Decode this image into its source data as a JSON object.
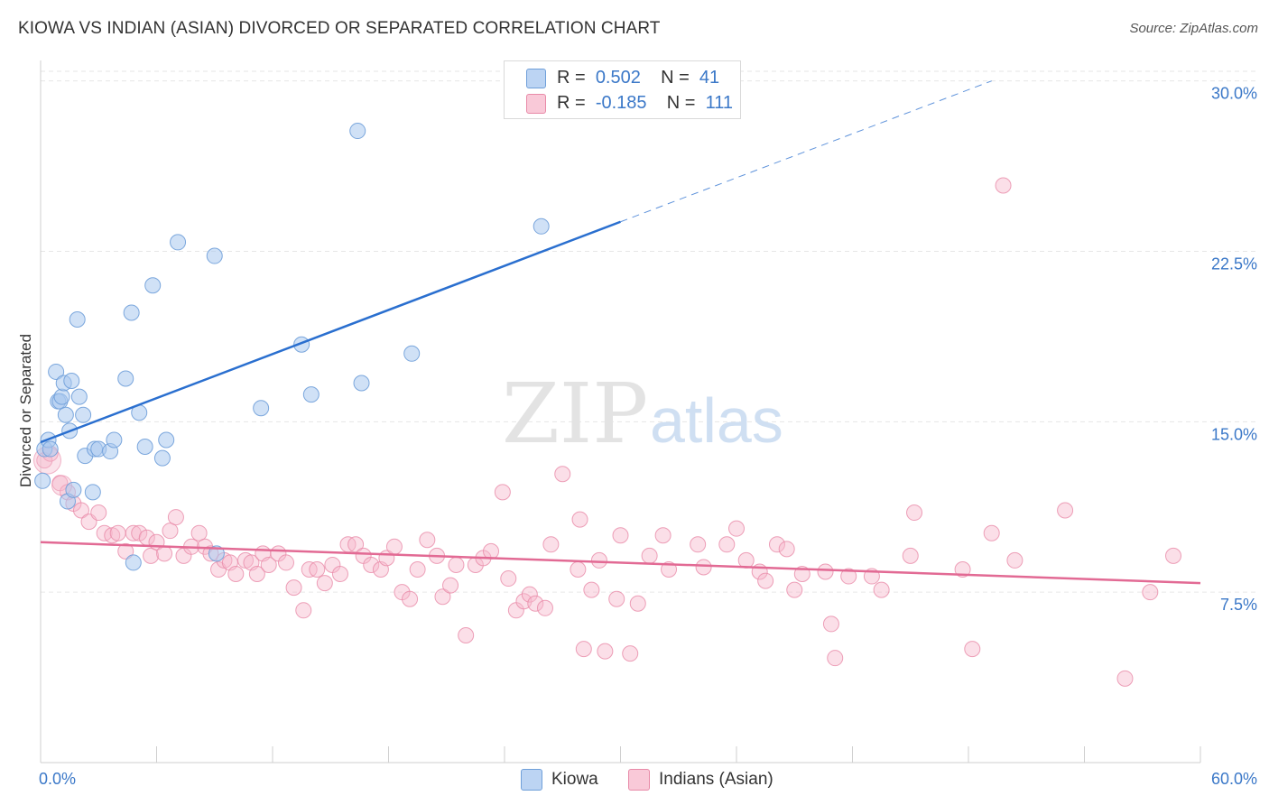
{
  "title": "KIOWA VS INDIAN (ASIAN) DIVORCED OR SEPARATED CORRELATION CHART",
  "source": "Source: ZipAtlas.com",
  "watermark": {
    "zip": "ZIP",
    "atlas": "atlas"
  },
  "legend": {
    "r_label": "R =",
    "n_label": "N =",
    "kiowa": {
      "r": "0.502",
      "n": "41"
    },
    "indian": {
      "r": "-0.185",
      "n": "111"
    }
  },
  "bottom_legend": {
    "kiowa": "Kiowa",
    "indian": "Indians (Asian)"
  },
  "colors": {
    "kiowa_fill": "#aac8ef",
    "kiowa_stroke": "#6f9fd9",
    "kiowa_line": "#2a6fcf",
    "indian_fill": "#f6b9cc",
    "indian_stroke": "#e88aa8",
    "indian_line": "#e26a94",
    "axis_text": "#3b78c8",
    "grid": "#e6e6e6"
  },
  "chart_data": {
    "type": "scatter",
    "xlabel": "",
    "ylabel": "Divorced or Separated",
    "xlim": [
      0,
      60
    ],
    "ylim": [
      0,
      30.9
    ],
    "x_tick_labels": [
      "0.0%",
      "60.0%"
    ],
    "y_ticks": [
      7.5,
      15.0,
      22.5,
      30.0
    ],
    "y_tick_labels": [
      "7.5%",
      "15.0%",
      "22.5%",
      "30.0%"
    ],
    "grid": "horizontal dashed",
    "series": [
      {
        "name": "Kiowa",
        "points": [
          [
            0.1,
            12.4
          ],
          [
            0.2,
            13.8
          ],
          [
            0.4,
            14.2
          ],
          [
            0.5,
            13.8
          ],
          [
            0.8,
            17.2
          ],
          [
            0.9,
            15.9
          ],
          [
            1.0,
            15.9
          ],
          [
            1.1,
            16.1
          ],
          [
            1.2,
            16.7
          ],
          [
            1.3,
            15.3
          ],
          [
            1.4,
            11.5
          ],
          [
            1.5,
            14.6
          ],
          [
            1.6,
            16.8
          ],
          [
            1.7,
            12.0
          ],
          [
            1.9,
            19.5
          ],
          [
            2.0,
            16.1
          ],
          [
            2.2,
            15.3
          ],
          [
            2.3,
            13.5
          ],
          [
            2.7,
            11.9
          ],
          [
            2.8,
            13.8
          ],
          [
            3.0,
            13.8
          ],
          [
            3.6,
            13.7
          ],
          [
            3.8,
            14.2
          ],
          [
            4.4,
            16.9
          ],
          [
            4.7,
            19.8
          ],
          [
            4.8,
            8.8
          ],
          [
            5.1,
            15.4
          ],
          [
            5.4,
            13.9
          ],
          [
            5.8,
            21.0
          ],
          [
            6.3,
            13.4
          ],
          [
            6.5,
            14.2
          ],
          [
            7.1,
            22.9
          ],
          [
            9.0,
            22.3
          ],
          [
            9.1,
            9.2
          ],
          [
            11.4,
            15.6
          ],
          [
            13.5,
            18.4
          ],
          [
            14.0,
            16.2
          ],
          [
            16.4,
            27.8
          ],
          [
            16.6,
            16.7
          ],
          [
            19.2,
            18.0
          ],
          [
            25.9,
            23.6
          ]
        ],
        "trend": {
          "x": [
            0,
            30
          ],
          "y": [
            14.1,
            23.8
          ],
          "dashed_to": [
            49.2,
            30.0
          ]
        }
      },
      {
        "name": "Indians (Asian)",
        "points": [
          [
            0.2,
            13.3
          ],
          [
            0.5,
            13.6
          ],
          [
            1.0,
            12.3
          ],
          [
            1.4,
            11.9
          ],
          [
            1.7,
            11.4
          ],
          [
            2.1,
            11.1
          ],
          [
            2.5,
            10.6
          ],
          [
            3.0,
            11.0
          ],
          [
            3.3,
            10.1
          ],
          [
            3.7,
            10.0
          ],
          [
            4.0,
            10.1
          ],
          [
            4.4,
            9.3
          ],
          [
            4.8,
            10.1
          ],
          [
            5.1,
            10.1
          ],
          [
            5.5,
            9.9
          ],
          [
            5.7,
            9.1
          ],
          [
            6.0,
            9.7
          ],
          [
            6.4,
            9.2
          ],
          [
            6.7,
            10.2
          ],
          [
            7.0,
            10.8
          ],
          [
            7.4,
            9.1
          ],
          [
            7.8,
            9.5
          ],
          [
            8.2,
            10.1
          ],
          [
            8.5,
            9.5
          ],
          [
            8.8,
            9.2
          ],
          [
            9.2,
            8.5
          ],
          [
            9.5,
            8.9
          ],
          [
            9.8,
            8.8
          ],
          [
            10.1,
            8.3
          ],
          [
            10.6,
            8.9
          ],
          [
            10.9,
            8.8
          ],
          [
            11.2,
            8.3
          ],
          [
            11.5,
            9.2
          ],
          [
            11.8,
            8.7
          ],
          [
            12.3,
            9.2
          ],
          [
            12.7,
            8.8
          ],
          [
            13.1,
            7.7
          ],
          [
            13.6,
            6.7
          ],
          [
            13.9,
            8.5
          ],
          [
            14.3,
            8.5
          ],
          [
            14.7,
            7.9
          ],
          [
            15.1,
            8.7
          ],
          [
            15.5,
            8.3
          ],
          [
            15.9,
            9.6
          ],
          [
            16.3,
            9.6
          ],
          [
            16.7,
            9.1
          ],
          [
            17.1,
            8.7
          ],
          [
            17.6,
            8.5
          ],
          [
            17.9,
            9.0
          ],
          [
            18.3,
            9.5
          ],
          [
            18.7,
            7.5
          ],
          [
            19.1,
            7.2
          ],
          [
            19.5,
            8.5
          ],
          [
            20.0,
            9.8
          ],
          [
            20.5,
            9.1
          ],
          [
            20.8,
            7.3
          ],
          [
            21.2,
            7.8
          ],
          [
            21.5,
            8.7
          ],
          [
            22.0,
            5.6
          ],
          [
            22.5,
            8.7
          ],
          [
            22.9,
            9.0
          ],
          [
            23.3,
            9.3
          ],
          [
            23.9,
            11.9
          ],
          [
            24.2,
            8.1
          ],
          [
            24.6,
            6.7
          ],
          [
            25.0,
            7.1
          ],
          [
            25.3,
            7.4
          ],
          [
            25.6,
            7.0
          ],
          [
            26.1,
            6.8
          ],
          [
            26.4,
            9.6
          ],
          [
            27.0,
            12.7
          ],
          [
            27.8,
            8.5
          ],
          [
            27.9,
            10.7
          ],
          [
            28.1,
            5.0
          ],
          [
            28.5,
            7.6
          ],
          [
            28.9,
            8.9
          ],
          [
            29.2,
            4.9
          ],
          [
            29.8,
            7.2
          ],
          [
            30.5,
            4.8
          ],
          [
            30.9,
            7.0
          ],
          [
            30.0,
            10.0
          ],
          [
            31.5,
            9.1
          ],
          [
            32.2,
            10.0
          ],
          [
            32.5,
            8.5
          ],
          [
            34.0,
            9.6
          ],
          [
            34.3,
            8.6
          ],
          [
            35.5,
            9.6
          ],
          [
            36.0,
            10.3
          ],
          [
            36.5,
            8.9
          ],
          [
            37.2,
            8.4
          ],
          [
            37.5,
            8.0
          ],
          [
            38.1,
            9.6
          ],
          [
            38.6,
            9.4
          ],
          [
            39.0,
            7.6
          ],
          [
            39.4,
            8.3
          ],
          [
            40.6,
            8.4
          ],
          [
            40.9,
            6.1
          ],
          [
            41.1,
            4.6
          ],
          [
            41.8,
            8.2
          ],
          [
            43.0,
            8.2
          ],
          [
            43.5,
            7.6
          ],
          [
            45.2,
            11.0
          ],
          [
            45.0,
            9.1
          ],
          [
            47.7,
            8.5
          ],
          [
            48.2,
            5.0
          ],
          [
            49.2,
            10.1
          ],
          [
            49.8,
            25.4
          ],
          [
            50.4,
            8.9
          ],
          [
            53.0,
            11.1
          ],
          [
            56.1,
            3.7
          ],
          [
            57.4,
            7.5
          ],
          [
            58.6,
            9.1
          ]
        ],
        "trend": {
          "x": [
            0,
            60
          ],
          "y": [
            9.7,
            7.9
          ]
        }
      }
    ]
  }
}
